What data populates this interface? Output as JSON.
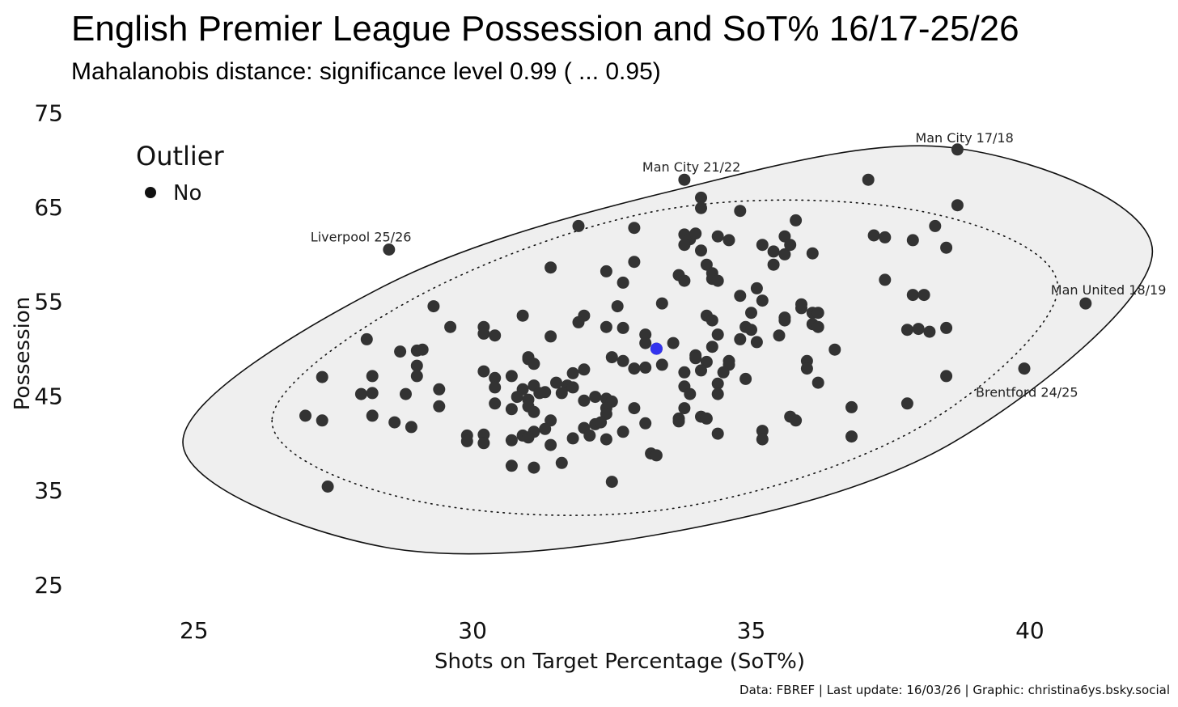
{
  "chart_data": {
    "type": "scatter",
    "title": "English Premier League Possession and SoT% 16/17-25/26",
    "subtitle": "Mahalanobis distance: significance level 0.99 ( ... 0.95)",
    "xlabel": "Shots on Target Percentage (SoT%)",
    "ylabel": "Possession",
    "xlim": [
      23.0,
      42.6
    ],
    "ylim": [
      22.5,
      75.8
    ],
    "xticks": [
      "25",
      "30",
      "35",
      "40"
    ],
    "yticks": [
      "25",
      "35",
      "45",
      "55",
      "65",
      "75"
    ],
    "legend": {
      "title": "Outlier",
      "items": [
        {
          "label": "No",
          "color": "#333333"
        }
      ],
      "placement": "top-left"
    },
    "caption": "Data: FBREF | Last update: 16/03/26 | Graphic: christina6ys.bsky.social",
    "colors": {
      "point": "#333333",
      "highlight": "#3333ee",
      "ellipse_fill": "#efefef",
      "ellipse_stroke": "#111111"
    },
    "highlight_point": {
      "x": 33.3,
      "y": 50.0
    },
    "ellipse_099": {
      "center": [
        33.5,
        48.9
      ],
      "points": [
        [
          24.8,
          40.1
        ],
        [
          28.4,
          29.0
        ],
        [
          33.5,
          30.5
        ],
        [
          38.6,
          40.0
        ],
        [
          42.2,
          60.3
        ],
        [
          38.6,
          71.3
        ],
        [
          33.5,
          66.6
        ],
        [
          28.4,
          56.6
        ]
      ]
    },
    "ellipse_095": {
      "center": [
        33.5,
        48.9
      ],
      "points": [
        [
          26.4,
          42.4
        ],
        [
          28.9,
          34.0
        ],
        [
          33.5,
          33.0
        ],
        [
          38.0,
          41.6
        ],
        [
          40.5,
          56.4
        ],
        [
          38.1,
          64.5
        ],
        [
          33.5,
          64.8
        ],
        [
          29.0,
          55.5
        ]
      ]
    },
    "annotations": [
      {
        "label": "Man City 17/18",
        "x": 38.7,
        "y": 71.1
      },
      {
        "label": "Man City 21/22",
        "x": 33.8,
        "y": 67.9
      },
      {
        "label": "Liverpool 25/26",
        "x": 28.5,
        "y": 60.5
      },
      {
        "label": "Man United 18/19",
        "x": 41.0,
        "y": 54.8
      },
      {
        "label": "Brentford 24/25",
        "x": 39.9,
        "y": 47.9
      }
    ],
    "points": [
      [
        38.7,
        71.1
      ],
      [
        33.8,
        67.9
      ],
      [
        37.1,
        67.9
      ],
      [
        34.1,
        66.0
      ],
      [
        34.1,
        64.9
      ],
      [
        34.8,
        64.6
      ],
      [
        38.7,
        65.2
      ],
      [
        31.9,
        63.0
      ],
      [
        32.9,
        62.8
      ],
      [
        35.8,
        63.6
      ],
      [
        37.2,
        62.0
      ],
      [
        37.4,
        61.8
      ],
      [
        38.3,
        63.0
      ],
      [
        33.8,
        62.1
      ],
      [
        33.9,
        61.6
      ],
      [
        34.0,
        62.2
      ],
      [
        34.4,
        61.9
      ],
      [
        34.6,
        61.5
      ],
      [
        35.6,
        61.9
      ],
      [
        37.9,
        61.5
      ],
      [
        28.5,
        60.5
      ],
      [
        33.8,
        61.0
      ],
      [
        34.1,
        60.4
      ],
      [
        35.2,
        61.0
      ],
      [
        35.4,
        60.3
      ],
      [
        35.6,
        60.0
      ],
      [
        35.7,
        61.0
      ],
      [
        36.1,
        60.1
      ],
      [
        38.5,
        60.7
      ],
      [
        31.4,
        58.6
      ],
      [
        32.9,
        59.2
      ],
      [
        34.2,
        58.9
      ],
      [
        35.4,
        58.9
      ],
      [
        32.4,
        58.2
      ],
      [
        33.7,
        57.8
      ],
      [
        34.3,
        58.0
      ],
      [
        33.8,
        57.2
      ],
      [
        32.7,
        57.0
      ],
      [
        34.3,
        57.4
      ],
      [
        34.4,
        57.2
      ],
      [
        37.4,
        57.3
      ],
      [
        35.1,
        56.4
      ],
      [
        34.8,
        55.6
      ],
      [
        37.9,
        55.7
      ],
      [
        38.1,
        55.7
      ],
      [
        35.2,
        55.1
      ],
      [
        33.4,
        54.8
      ],
      [
        29.3,
        54.5
      ],
      [
        32.6,
        54.5
      ],
      [
        35.9,
        54.3
      ],
      [
        35.9,
        54.7
      ],
      [
        36.1,
        53.8
      ],
      [
        36.2,
        53.8
      ],
      [
        32.0,
        53.5
      ],
      [
        34.2,
        53.5
      ],
      [
        35.0,
        53.8
      ],
      [
        30.9,
        53.5
      ],
      [
        35.6,
        53.0
      ],
      [
        35.6,
        53.3
      ],
      [
        31.9,
        52.8
      ],
      [
        34.3,
        53.0
      ],
      [
        36.1,
        52.6
      ],
      [
        36.2,
        52.3
      ],
      [
        29.6,
        52.3
      ],
      [
        30.2,
        52.3
      ],
      [
        32.4,
        52.3
      ],
      [
        32.7,
        52.2
      ],
      [
        34.9,
        52.3
      ],
      [
        35.0,
        52.0
      ],
      [
        37.8,
        52.0
      ],
      [
        38.0,
        52.1
      ],
      [
        38.2,
        51.8
      ],
      [
        38.5,
        52.2
      ],
      [
        33.1,
        51.5
      ],
      [
        34.4,
        51.5
      ],
      [
        34.8,
        51.0
      ],
      [
        35.5,
        51.4
      ],
      [
        28.1,
        51.0
      ],
      [
        30.2,
        51.6
      ],
      [
        30.4,
        51.4
      ],
      [
        31.4,
        51.3
      ],
      [
        33.1,
        50.6
      ],
      [
        33.6,
        50.6
      ],
      [
        34.3,
        50.2
      ],
      [
        35.1,
        50.7
      ],
      [
        33.3,
        50.0
      ],
      [
        36.5,
        49.9
      ],
      [
        28.7,
        49.7
      ],
      [
        29.0,
        49.8
      ],
      [
        29.1,
        49.9
      ],
      [
        31.0,
        49.1
      ],
      [
        32.5,
        49.1
      ],
      [
        34.0,
        49.3
      ],
      [
        34.0,
        49.0
      ],
      [
        31.0,
        48.9
      ],
      [
        32.7,
        48.7
      ],
      [
        33.4,
        48.3
      ],
      [
        34.2,
        48.6
      ],
      [
        34.6,
        48.7
      ],
      [
        29.0,
        48.2
      ],
      [
        31.1,
        48.4
      ],
      [
        34.6,
        48.3
      ],
      [
        36.0,
        48.7
      ],
      [
        36.0,
        47.9
      ],
      [
        33.1,
        48.0
      ],
      [
        32.0,
        47.8
      ],
      [
        32.9,
        47.9
      ],
      [
        30.2,
        47.6
      ],
      [
        31.8,
        47.4
      ],
      [
        33.8,
        47.5
      ],
      [
        34.1,
        47.7
      ],
      [
        34.5,
        47.5
      ],
      [
        27.3,
        47.0
      ],
      [
        28.2,
        47.1
      ],
      [
        29.0,
        47.1
      ],
      [
        30.4,
        46.9
      ],
      [
        30.7,
        47.1
      ],
      [
        34.9,
        46.8
      ],
      [
        36.2,
        46.4
      ],
      [
        38.5,
        47.1
      ],
      [
        31.1,
        46.1
      ],
      [
        31.5,
        46.4
      ],
      [
        31.7,
        46.1
      ],
      [
        31.8,
        45.9
      ],
      [
        33.8,
        46.0
      ],
      [
        34.4,
        46.3
      ],
      [
        30.4,
        45.9
      ],
      [
        30.9,
        45.7
      ],
      [
        31.3,
        45.4
      ],
      [
        28.0,
        45.2
      ],
      [
        28.2,
        45.3
      ],
      [
        28.8,
        45.2
      ],
      [
        29.4,
        45.7
      ],
      [
        31.2,
        45.3
      ],
      [
        31.6,
        45.3
      ],
      [
        33.9,
        45.2
      ],
      [
        34.4,
        45.2
      ],
      [
        30.8,
        44.9
      ],
      [
        31.0,
        44.6
      ],
      [
        32.2,
        44.9
      ],
      [
        32.4,
        44.7
      ],
      [
        32.0,
        44.5
      ],
      [
        32.5,
        44.4
      ],
      [
        30.4,
        44.2
      ],
      [
        31.0,
        43.9
      ],
      [
        37.8,
        44.2
      ],
      [
        36.8,
        43.8
      ],
      [
        30.7,
        43.6
      ],
      [
        32.4,
        43.7
      ],
      [
        32.9,
        43.7
      ],
      [
        33.8,
        43.7
      ],
      [
        31.1,
        43.3
      ],
      [
        32.4,
        43.1
      ],
      [
        33.7,
        42.6
      ],
      [
        34.1,
        42.8
      ],
      [
        34.2,
        42.6
      ],
      [
        35.7,
        42.8
      ],
      [
        27.0,
        42.9
      ],
      [
        28.2,
        42.9
      ],
      [
        29.4,
        43.9
      ],
      [
        35.8,
        42.4
      ],
      [
        27.3,
        42.4
      ],
      [
        28.6,
        42.2
      ],
      [
        28.9,
        41.7
      ],
      [
        31.4,
        42.4
      ],
      [
        32.2,
        42.0
      ],
      [
        32.3,
        42.2
      ],
      [
        33.1,
        42.1
      ],
      [
        33.7,
        42.3
      ],
      [
        32.0,
        41.6
      ],
      [
        34.4,
        41.0
      ],
      [
        35.2,
        41.3
      ],
      [
        35.2,
        40.4
      ],
      [
        31.3,
        41.5
      ],
      [
        31.1,
        41.2
      ],
      [
        30.9,
        40.8
      ],
      [
        32.7,
        41.2
      ],
      [
        29.9,
        40.8
      ],
      [
        30.2,
        40.9
      ],
      [
        31.0,
        40.6
      ],
      [
        31.8,
        40.5
      ],
      [
        32.1,
        40.8
      ],
      [
        32.4,
        40.4
      ],
      [
        36.8,
        40.7
      ],
      [
        29.9,
        40.2
      ],
      [
        30.2,
        40.0
      ],
      [
        30.7,
        40.3
      ],
      [
        31.4,
        39.8
      ],
      [
        33.2,
        38.9
      ],
      [
        33.3,
        38.7
      ],
      [
        31.6,
        37.9
      ],
      [
        30.7,
        37.6
      ],
      [
        31.1,
        37.4
      ],
      [
        32.5,
        35.9
      ],
      [
        27.4,
        35.4
      ],
      [
        41.0,
        54.8
      ],
      [
        39.9,
        47.9
      ]
    ]
  }
}
